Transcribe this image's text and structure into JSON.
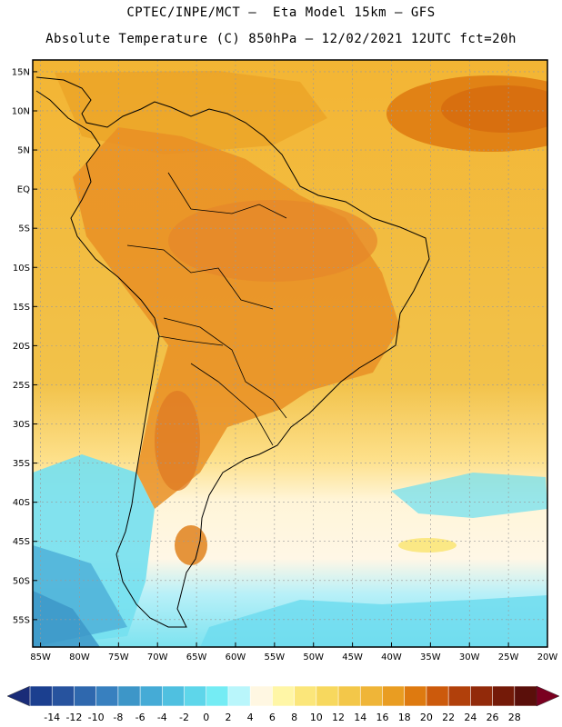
{
  "header": {
    "line1": "CPTEC/INPE/MCT –  Eta Model 15km – GFS",
    "line2": "Absolute Temperature (C) 850hPa – 12/02/2021 12UTC fct=20h"
  },
  "axes": {
    "lat_labels": [
      "15N",
      "10N",
      "5N",
      "EQ",
      "5S",
      "10S",
      "15S",
      "20S",
      "25S",
      "30S",
      "35S",
      "40S",
      "45S",
      "50S",
      "55S"
    ],
    "lat_values": [
      15,
      10,
      5,
      0,
      -5,
      -10,
      -15,
      -20,
      -25,
      -30,
      -35,
      -40,
      -45,
      -50,
      -55
    ],
    "lon_labels": [
      "85W",
      "80W",
      "75W",
      "70W",
      "65W",
      "60W",
      "55W",
      "50W",
      "45W",
      "40W",
      "35W",
      "30W",
      "25W",
      "20W"
    ],
    "lon_values": [
      -85,
      -80,
      -75,
      -70,
      -65,
      -60,
      -55,
      -50,
      -45,
      -40,
      -35,
      -30,
      -25,
      -20
    ]
  },
  "colorbar": {
    "labels": [
      "-14",
      "-12",
      "-10",
      "-8",
      "-6",
      "-4",
      "-2",
      "0",
      "2",
      "4",
      "6",
      "8",
      "10",
      "12",
      "14",
      "16",
      "18",
      "20",
      "22",
      "24",
      "26",
      "28"
    ],
    "colors": [
      "#1b3f8f",
      "#27539e",
      "#2f68ae",
      "#3880bf",
      "#3d96c8",
      "#45abd6",
      "#4fc0e0",
      "#5ed6ea",
      "#74ecf4",
      "#b9f6fb",
      "#fff7e2",
      "#fff6a6",
      "#fbe67a",
      "#f7d85e",
      "#f3c749",
      "#efb538",
      "#e99d22",
      "#de7a10",
      "#cc5a0c",
      "#b1400b",
      "#922a0a",
      "#741a08",
      "#5a0f0a"
    ],
    "low_arrow_color": "#1a2c78",
    "high_arrow_color": "#7a0020"
  }
}
